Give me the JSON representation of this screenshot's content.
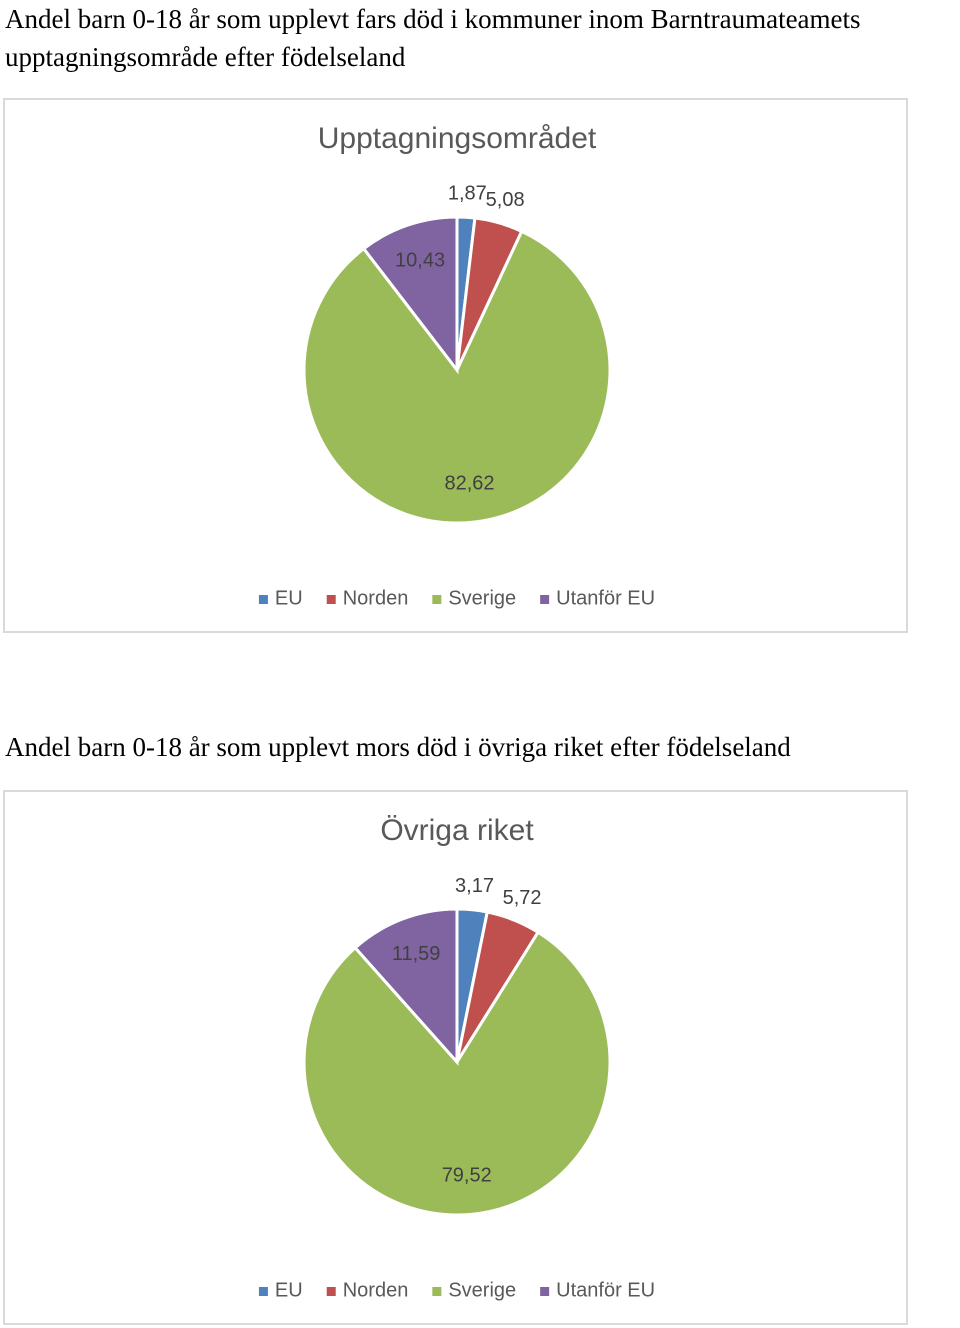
{
  "headings": [
    "Andel barn 0-18 år som upplevt fars död i kommuner inom Barntraumateamets upptagningsområde efter födelseland",
    "Andel barn 0-18 år som upplevt mors död i övriga riket efter födelseland"
  ],
  "chart_data": [
    {
      "type": "pie",
      "title": "Upptagningsområdet",
      "categories": [
        "EU",
        "Norden",
        "Sverige",
        "Utanför EU"
      ],
      "values": [
        1.87,
        5.08,
        82.62,
        10.43
      ],
      "value_labels": [
        "1,87",
        "5,08",
        "82,62",
        "10,43"
      ],
      "colors": [
        "#4f81bd",
        "#c0504d",
        "#9bbb59",
        "#8064a2"
      ],
      "legend": "bottom"
    },
    {
      "type": "pie",
      "title": "Övriga riket",
      "categories": [
        "EU",
        "Norden",
        "Sverige",
        "Utanför EU"
      ],
      "values": [
        3.17,
        5.72,
        79.52,
        11.59
      ],
      "value_labels": [
        "3,17",
        "5,72",
        "79,52",
        "11,59"
      ],
      "colors": [
        "#4f81bd",
        "#c0504d",
        "#9bbb59",
        "#8064a2"
      ],
      "legend": "bottom"
    }
  ]
}
